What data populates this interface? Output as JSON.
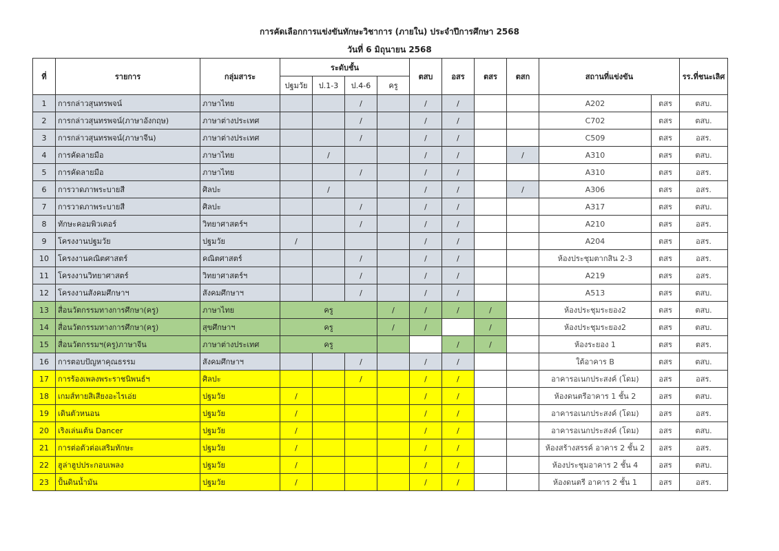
{
  "title": "การคัดเลือกการแข่งขันทักษะวิชาการ (ภายใน) ประจำปีการศึกษา 2568",
  "date": "วันที่ 6 มิถุนายน 2568",
  "colors": {
    "gray": "#d6dce4",
    "green": "#a9d08e",
    "yellow": "#ffff00",
    "white": "#ffffff"
  },
  "headers": {
    "no": "ที่",
    "item": "รายการ",
    "group": "กลุ่มสาระ",
    "level": "ระดับชั้น",
    "levels": [
      "ปฐมวัย",
      "ป.1-3",
      "ป.4-6",
      "ครู"
    ],
    "tsb": "ตสบ",
    "osr": "อสร",
    "tsr": "ตสร",
    "tsk": "ตสก",
    "venue": "สถานที่แข่งขัน",
    "winner": "รร.ที่ชนะเลิศ"
  },
  "rows": [
    {
      "no": "1",
      "item": "การกล่าวสุนทรพจน์",
      "group": "ภาษาไทย",
      "levels": [
        "",
        "",
        "/",
        ""
      ],
      "tsb": "/",
      "osr": "/",
      "tsr": "",
      "tsk": "",
      "venue": "A202",
      "zone": "ตสร",
      "winner": "ตสบ.",
      "theme": "gray"
    },
    {
      "no": "2",
      "item": "การกล่าวสุนทรพจน์(ภาษาอังกฤษ)",
      "group": "ภาษาต่างประเทศ",
      "levels": [
        "",
        "",
        "/",
        ""
      ],
      "tsb": "/",
      "osr": "/",
      "tsr": "",
      "tsk": "",
      "venue": "C702",
      "zone": "ตสร",
      "winner": "ตสบ.",
      "theme": "gray"
    },
    {
      "no": "3",
      "item": "การกล่าวสุนทรพจน์(ภาษาจีน)",
      "group": "ภาษาต่างประเทศ",
      "levels": [
        "",
        "",
        "/",
        ""
      ],
      "tsb": "/",
      "osr": "/",
      "tsr": "",
      "tsk": "",
      "venue": "C509",
      "zone": "ตสร",
      "winner": "อสร.",
      "theme": "gray"
    },
    {
      "no": "4",
      "item": "การคัดลายมือ",
      "group": "ภาษาไทย",
      "levels": [
        "",
        "/",
        "",
        ""
      ],
      "tsb": "/",
      "osr": "/",
      "tsr": "",
      "tsk": "/",
      "venue": "A310",
      "zone": "ตสร",
      "winner": "ตสบ.",
      "theme": "gray"
    },
    {
      "no": "5",
      "item": "การคัดลายมือ",
      "group": "ภาษาไทย",
      "levels": [
        "",
        "",
        "/",
        ""
      ],
      "tsb": "/",
      "osr": "/",
      "tsr": "",
      "tsk": "",
      "venue": "A310",
      "zone": "ตสร",
      "winner": "อสร.",
      "theme": "gray"
    },
    {
      "no": "6",
      "item": "การวาดภาพระบายสี",
      "group": "ศิลปะ",
      "levels": [
        "",
        "/",
        "",
        ""
      ],
      "tsb": "/",
      "osr": "/",
      "tsr": "",
      "tsk": "/",
      "venue": "A306",
      "zone": "ตสร",
      "winner": "อสร.",
      "theme": "gray"
    },
    {
      "no": "7",
      "item": "การวาดภาพระบายสี",
      "group": "ศิลปะ",
      "levels": [
        "",
        "",
        "/",
        ""
      ],
      "tsb": "/",
      "osr": "/",
      "tsr": "",
      "tsk": "",
      "venue": "A317",
      "zone": "ตสร",
      "winner": "ตสบ.",
      "theme": "gray"
    },
    {
      "no": "8",
      "item": "ทักษะคอมพิวเตอร์",
      "group": "วิทยาศาสตร์ฯ",
      "levels": [
        "",
        "",
        "/",
        ""
      ],
      "tsb": "/",
      "osr": "/",
      "tsr": "",
      "tsk": "",
      "venue": "A210",
      "zone": "ตสร",
      "winner": "อสร.",
      "theme": "gray"
    },
    {
      "no": "9",
      "item": "โครงงานปฐมวัย",
      "group": "ปฐมวัย",
      "levels": [
        "/",
        "",
        "",
        ""
      ],
      "tsb": "/",
      "osr": "/",
      "tsr": "",
      "tsk": "",
      "venue": "A204",
      "zone": "ตสร",
      "winner": "อสร.",
      "theme": "gray"
    },
    {
      "no": "10",
      "item": "โครงงานคณิตศาสตร์",
      "group": "คณิตศาสตร์",
      "levels": [
        "",
        "",
        "/",
        ""
      ],
      "tsb": "/",
      "osr": "/",
      "tsr": "",
      "tsk": "",
      "venue": "ห้องประชุมตากสิน 2-3",
      "zone": "ตสร",
      "winner": "อสร.",
      "theme": "gray"
    },
    {
      "no": "11",
      "item": "โครงงานวิทยาศาสตร์",
      "group": "วิทยาศาสตร์ฯ",
      "levels": [
        "",
        "",
        "/",
        ""
      ],
      "tsb": "/",
      "osr": "/",
      "tsr": "",
      "tsk": "",
      "venue": "A219",
      "zone": "ตสร",
      "winner": "อสร.",
      "theme": "gray"
    },
    {
      "no": "12",
      "item": "โครงงานสังคมศึกษาฯ",
      "group": "สังคมศึกษาฯ",
      "levels": [
        "",
        "",
        "/",
        ""
      ],
      "tsb": "/",
      "osr": "/",
      "tsr": "",
      "tsk": "",
      "venue": "A513",
      "zone": "ตสร",
      "winner": "ตสบ.",
      "theme": "gray"
    },
    {
      "no": "13",
      "item": "สื่อนวัตกรรมทางการศึกษา(ครู)",
      "group": "ภาษาไทย",
      "merged_level": "ครู",
      "teacher": "/",
      "tsb": "/",
      "osr": "/",
      "tsr": "/",
      "tsk": "",
      "venue": "ห้องประชุมระยอง2",
      "zone": "ตสร",
      "winner": "ตสบ.",
      "theme": "green"
    },
    {
      "no": "14",
      "item": "สื่อนวัตกรรมทางการศึกษา(ครู)",
      "group": "สุขศึกษาฯ",
      "merged_level": "ครู",
      "teacher": "/",
      "tsb": "/",
      "osr": "",
      "tsr": "/",
      "tsk": "",
      "venue": "ห้องประชุมระยอง2",
      "zone": "ตสร",
      "winner": "ตสบ.",
      "theme": "green"
    },
    {
      "no": "15",
      "item": "สื่อนวัตกรรมฯ(ครู)ภาษาจีน",
      "group": "ภาษาต่างประเทศ",
      "merged_level": "ครู",
      "teacher": "",
      "tsb": "",
      "osr": "/",
      "tsr": "/",
      "tsk": "",
      "venue": "ห้องระยอง 1",
      "zone": "ตสร",
      "winner": "ตสร.",
      "theme": "green"
    },
    {
      "no": "16",
      "item": "การตอบปัญหาคุณธรรม",
      "group": "สังคมศึกษาฯ",
      "levels": [
        "",
        "",
        "/",
        ""
      ],
      "tsb": "/",
      "osr": "/",
      "tsr": "",
      "tsk": "",
      "venue": "ใต้อาคาร B",
      "zone": "ตสร",
      "winner": "ตสบ.",
      "theme": "gray"
    },
    {
      "no": "17",
      "item": "การร้องเพลงพระราชนิพนธ์ฯ",
      "group": "ศิลปะ",
      "levels": [
        "",
        "",
        "/",
        ""
      ],
      "tsb": "/",
      "osr": "/",
      "tsr": "",
      "tsk": "",
      "venue": "อาคารอเนกประสงค์ (โดม)",
      "zone": "อสร",
      "winner": "อสร.",
      "theme": "yellow"
    },
    {
      "no": "18",
      "item": "เกมส์ทายสิเสียงอะไรเอ่ย",
      "group": "ปฐมวัย",
      "levels": [
        "/",
        "",
        "",
        ""
      ],
      "tsb": "/",
      "osr": "/",
      "tsr": "",
      "tsk": "",
      "venue": "ห้องดนตรีอาคาร 1 ชั้น 2",
      "zone": "อสร",
      "winner": "ตสบ.",
      "theme": "yellow"
    },
    {
      "no": "19",
      "item": "เดินตัวหนอน",
      "group": "ปฐมวัย",
      "levels": [
        "/",
        "",
        "",
        ""
      ],
      "tsb": "/",
      "osr": "/",
      "tsr": "",
      "tsk": "",
      "venue": "อาคารอเนกประสงค์ (โดม)",
      "zone": "อสร",
      "winner": "อสร.",
      "theme": "yellow"
    },
    {
      "no": "20",
      "item": "เริงเล่นเต้น Dancer",
      "group": "ปฐมวัย",
      "levels": [
        "/",
        "",
        "",
        ""
      ],
      "tsb": "/",
      "osr": "/",
      "tsr": "",
      "tsk": "",
      "venue": "อาคารอเนกประสงค์ (โดม)",
      "zone": "อสร",
      "winner": "ตสบ.",
      "theme": "yellow"
    },
    {
      "no": "21",
      "item": "การต่อตัวต่อเสริมทักษะ",
      "group": "ปฐมวัย",
      "levels": [
        "/",
        "",
        "",
        ""
      ],
      "tsb": "/",
      "osr": "/",
      "tsr": "",
      "tsk": "",
      "venue": "ห้องสร้างสรรค์ อาคาร 2 ชั้น 2",
      "zone": "อสร",
      "winner": "อสร.",
      "theme": "yellow"
    },
    {
      "no": "22",
      "item": "ฮูล่าฮูปประกอบเพลง",
      "group": "ปฐมวัย",
      "levels": [
        "/",
        "",
        "",
        ""
      ],
      "tsb": "/",
      "osr": "/",
      "tsr": "",
      "tsk": "",
      "venue": "ห้องประชุมอาคาร 2 ชั้น 4",
      "zone": "อสร",
      "winner": "ตสบ.",
      "theme": "yellow"
    },
    {
      "no": "23",
      "item": "ปั้นดินน้ำมัน",
      "group": "ปฐมวัย",
      "levels": [
        "/",
        "",
        "",
        ""
      ],
      "tsb": "/",
      "osr": "/",
      "tsr": "",
      "tsk": "",
      "venue": "ห้องดนตรี อาคาร 2 ชั้น 1",
      "zone": "อสร",
      "winner": "อสร.",
      "theme": "yellow"
    }
  ]
}
